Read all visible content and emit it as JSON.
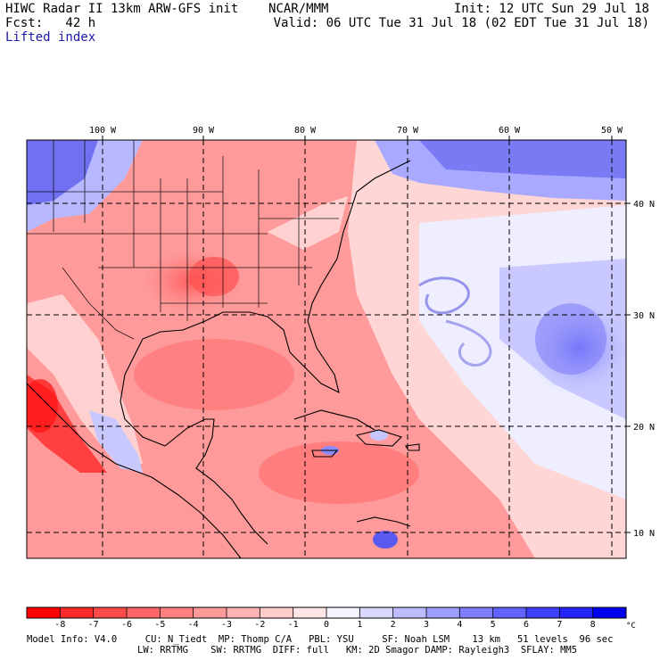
{
  "header": {
    "model": "HIWC Radar II 13km ARW-GFS init",
    "org": "NCAR/MMM",
    "forecast": "Fcst:   42 h",
    "field": "Lifted index",
    "init": "Init: 12 UTC Sun 29 Jul 18",
    "valid": "Valid: 06 UTC Tue 31 Jul 18 (02 EDT Tue 31 Jul 18)"
  },
  "map": {
    "lon_labels": [
      "100 W",
      "90 W",
      "80 W",
      "70 W",
      "60 W",
      "50 W"
    ],
    "lat_labels": [
      "40 N",
      "30 N",
      "20 N",
      "10 N"
    ]
  },
  "colorbar": {
    "labels": [
      "-8",
      "-7",
      "-6",
      "-5",
      "-4",
      "-3",
      "-2",
      "-1",
      "0",
      "1",
      "2",
      "3",
      "4",
      "5",
      "6",
      "7",
      "8"
    ],
    "unit": "°C",
    "colors": [
      "#ff0000",
      "#ff2b2b",
      "#ff4a4a",
      "#ff6666",
      "#ff8080",
      "#ff9a9a",
      "#ffb3b3",
      "#ffcccc",
      "#ffe6e6",
      "#f4f4ff",
      "#d9d9ff",
      "#bcbcff",
      "#9e9eff",
      "#8080ff",
      "#6262ff",
      "#4040ff",
      "#2424ff",
      "#0000ee"
    ]
  },
  "footer": {
    "line1": "Model Info: V4.0     CU: N_Tiedt  MP: Thomp C/A   PBL: YSU     SF: Noah LSM    13 km   51 levels  96 sec",
    "line2": "LW: RRTMG    SW: RRTMG  DIFF: full   KM: 2D Smagor DAMP: Rayleigh3  SFLAY: MM5"
  }
}
